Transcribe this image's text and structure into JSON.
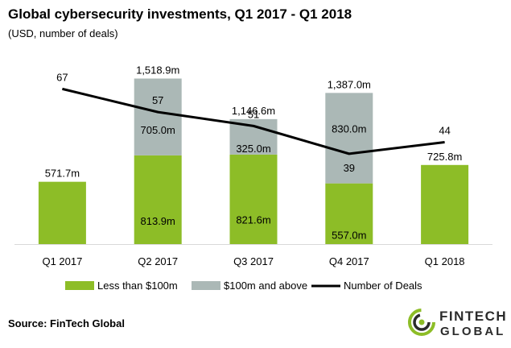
{
  "chart_data": {
    "type": "bar",
    "stacked": true,
    "title": "Global cybersecurity investments, Q1 2017 - Q1 2018",
    "subtitle": "(USD, number of deals)",
    "categories": [
      "Q1 2017",
      "Q2 2017",
      "Q3 2017",
      "Q4 2017",
      "Q1 2018"
    ],
    "series": [
      {
        "name": "Less than $100m",
        "color": "#8dbd27",
        "values": [
          571.7,
          813.9,
          821.6,
          557.0,
          725.8
        ],
        "labels": [
          "",
          "813.9m",
          "821.6m",
          "557.0m",
          ""
        ]
      },
      {
        "name": "$100m and above",
        "color": "#abb8b6",
        "values": [
          0,
          705.0,
          325.0,
          830.0,
          0
        ],
        "labels": [
          "",
          "705.0m",
          "325.0m",
          "830.0m",
          ""
        ]
      }
    ],
    "totals": [
      571.7,
      1518.9,
      1146.6,
      1387.0,
      725.8
    ],
    "total_labels": [
      "571.7m",
      "1,518.9m",
      "1,146.6m",
      "1,387.0m",
      "725.8m"
    ],
    "line_series": {
      "name": "Number of Deals",
      "color": "#000000",
      "values": [
        67,
        57,
        51,
        39,
        44
      ],
      "labels": [
        "67",
        "57",
        "51",
        "39",
        "44"
      ]
    },
    "ylim": [
      0,
      1700
    ],
    "line_ylim": [
      0,
      80
    ],
    "xlabel": "",
    "ylabel": "",
    "grid": false,
    "legend_position": "bottom"
  },
  "footer": {
    "source": "Source: FinTech Global",
    "logo_line1": "FINTECH",
    "logo_line2": "GLOBAL"
  }
}
